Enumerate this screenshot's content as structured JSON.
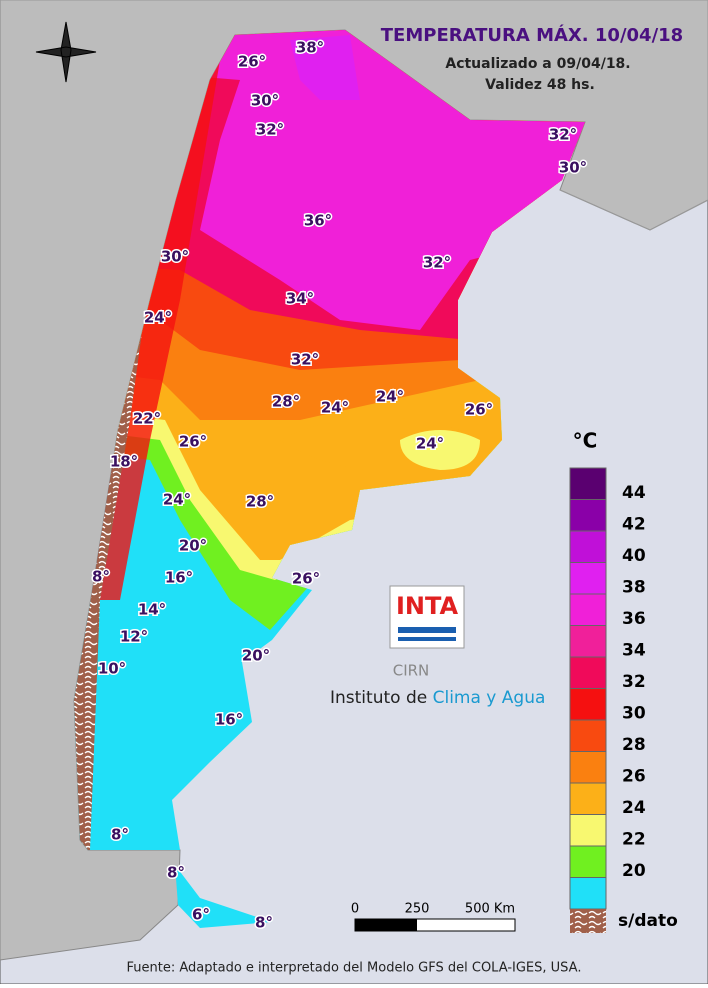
{
  "header": {
    "title": "TEMPERATURA MÁX. 10/04/18",
    "updated": "Actualizado a 09/04/18.",
    "validity": "Validez 48 hs."
  },
  "isotherm_labels": [
    "38°",
    "26°",
    "30°",
    "32°",
    "32°",
    "30°",
    "36°",
    "32°",
    "30°",
    "34°",
    "24°",
    "32°",
    "28°",
    "24°",
    "24°",
    "26°",
    "22°",
    "26°",
    "24°",
    "18°",
    "24°",
    "28°",
    "20°",
    "16°",
    "26°",
    "8°",
    "14°",
    "12°",
    "10°",
    "20°",
    "16°",
    "8°",
    "8°",
    "6°",
    "8°"
  ],
  "legend": {
    "unit": "°C",
    "items": [
      {
        "label": "44",
        "color": "#5a0070"
      },
      {
        "label": "42",
        "color": "#8a00a8"
      },
      {
        "label": "40",
        "color": "#c010d8"
      },
      {
        "label": "38",
        "color": "#e020f0"
      },
      {
        "label": "36",
        "color": "#f020d8"
      },
      {
        "label": "34",
        "color": "#f0209a"
      },
      {
        "label": "32",
        "color": "#f00a5a"
      },
      {
        "label": "30",
        "color": "#f51010"
      },
      {
        "label": "28",
        "color": "#f84a10"
      },
      {
        "label": "26",
        "color": "#fa8010"
      },
      {
        "label": "24",
        "color": "#fcb018"
      },
      {
        "label": "22",
        "color": "#f8f870"
      },
      {
        "label": "20",
        "color": "#70f020"
      },
      {
        "label": "",
        "color": "#20e0f8"
      }
    ],
    "no_data": "s/dato"
  },
  "scale_bar": {
    "labels": [
      "0",
      "250",
      "500 Km"
    ]
  },
  "logo": {
    "acronym": "INTA",
    "center": "CIRN",
    "name_prefix": "Instituto de ",
    "name_highlight": "Clima y Agua"
  },
  "footer": "Fuente: Adaptado e interpretado del Modelo GFS del COLA-IGES, USA."
}
